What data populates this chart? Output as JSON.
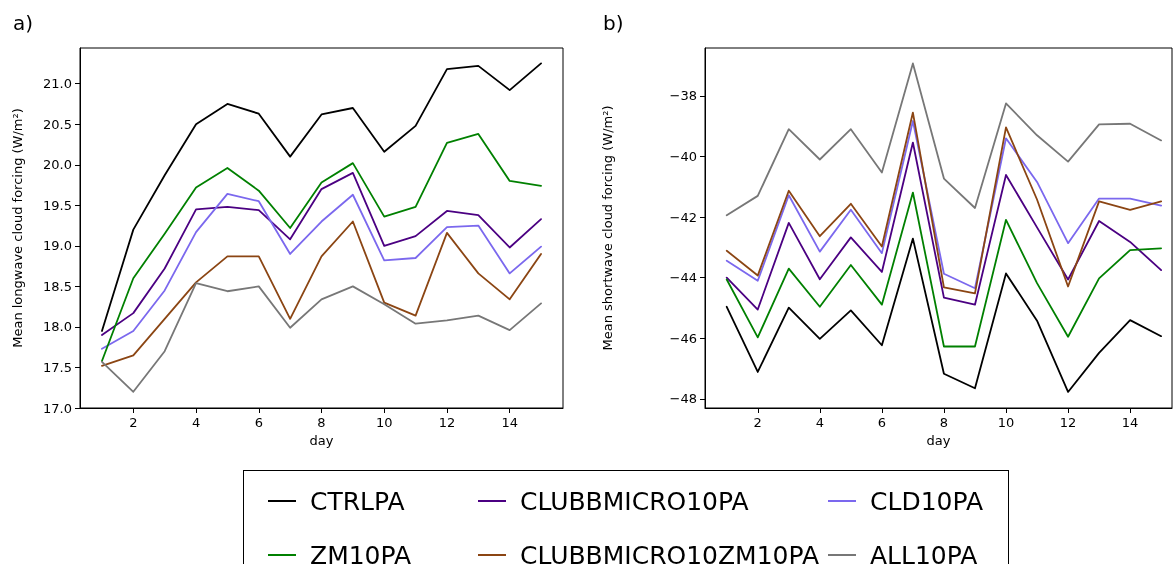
{
  "chart_data": [
    {
      "type": "line",
      "title": "a)",
      "xlabel": "day",
      "ylabel": "Mean longwave cloud forcing (W/m²)",
      "x": [
        1,
        2,
        3,
        4,
        5,
        6,
        7,
        8,
        9,
        10,
        11,
        12,
        13,
        14,
        15
      ],
      "xlim": [
        0.3,
        15.7
      ],
      "xticks": [
        2,
        4,
        6,
        8,
        10,
        12,
        14
      ],
      "ylim": [
        17.0,
        21.44
      ],
      "yticks": [
        {
          "value": 17,
          "label": "17.0"
        },
        {
          "value": 17.5,
          "label": "17.5"
        },
        {
          "value": 18,
          "label": "18.0"
        },
        {
          "value": 18.5,
          "label": "18.5"
        },
        {
          "value": 19,
          "label": "19.0"
        },
        {
          "value": 19.5,
          "label": "19.5"
        },
        {
          "value": 20,
          "label": "20.0"
        },
        {
          "value": 20.5,
          "label": "20.5"
        },
        {
          "value": 21,
          "label": "21.0"
        }
      ],
      "grid": false,
      "marker": "none",
      "line_style": "solid",
      "legend": "bottom",
      "series": [
        {
          "name": "CTRLPA",
          "color": "#000000",
          "values": [
            17.95,
            19.2,
            19.87,
            20.5,
            20.75,
            20.63,
            20.1,
            20.62,
            20.7,
            20.16,
            20.48,
            21.18,
            21.22,
            20.92,
            21.25
          ]
        },
        {
          "name": "CLUBBMICRO10PA",
          "color": "#4b0082",
          "values": [
            17.9,
            18.17,
            18.72,
            19.45,
            19.48,
            19.44,
            19.08,
            19.7,
            19.9,
            19.0,
            19.12,
            19.43,
            19.38,
            18.98,
            19.33
          ]
        },
        {
          "name": "CLD10PA",
          "color": "#7b68ee",
          "values": [
            17.73,
            17.95,
            18.45,
            19.17,
            19.64,
            19.55,
            18.9,
            19.3,
            19.63,
            18.82,
            18.85,
            19.23,
            19.25,
            18.66,
            18.99
          ]
        },
        {
          "name": "ZM10PA",
          "color": "#008000",
          "values": [
            17.58,
            18.6,
            19.15,
            19.72,
            19.96,
            19.68,
            19.22,
            19.78,
            20.02,
            19.36,
            19.48,
            20.27,
            20.38,
            19.8,
            19.74
          ]
        },
        {
          "name": "CLUBBMICRO10ZM10PA",
          "color": "#8b4513",
          "values": [
            17.52,
            17.65,
            18.1,
            18.55,
            18.87,
            18.87,
            18.1,
            18.87,
            19.3,
            18.3,
            18.14,
            19.16,
            18.66,
            18.34,
            18.9
          ]
        },
        {
          "name": "ALL10PA",
          "color": "#777777",
          "values": [
            17.57,
            17.2,
            17.7,
            18.54,
            18.44,
            18.5,
            17.99,
            18.34,
            18.5,
            18.28,
            18.04,
            18.08,
            18.14,
            17.96,
            18.29
          ]
        }
      ]
    },
    {
      "type": "line",
      "title": "b)",
      "xlabel": "day",
      "ylabel": "Mean shortwave cloud forcing (W/m²)",
      "x": [
        1,
        2,
        3,
        4,
        5,
        6,
        7,
        8,
        9,
        10,
        11,
        12,
        13,
        14,
        15
      ],
      "xlim": [
        0.3,
        15.35
      ],
      "xticks": [
        2,
        4,
        6,
        8,
        10,
        12,
        14
      ],
      "ylim": [
        -48.3,
        -36.42
      ],
      "yticks": [
        {
          "value": -48,
          "label": "−48"
        },
        {
          "value": -46,
          "label": "−46"
        },
        {
          "value": -44,
          "label": "−44"
        },
        {
          "value": -42,
          "label": "−42"
        },
        {
          "value": -40,
          "label": "−40"
        },
        {
          "value": -38,
          "label": "−38"
        }
      ],
      "grid": false,
      "marker": "none",
      "line_style": "solid",
      "series": [
        {
          "color": "#000000",
          "values": [
            -44.96,
            -47.11,
            -44.99,
            -46.02,
            -45.08,
            -46.23,
            -42.71,
            -47.17,
            -47.65,
            -43.86,
            -45.42,
            -47.77,
            -46.48,
            -45.4,
            -45.93
          ]
        },
        {
          "color": "#4b0082",
          "values": [
            -44.0,
            -45.05,
            -42.19,
            -44.05,
            -42.67,
            -43.81,
            -39.54,
            -44.66,
            -44.89,
            -40.61,
            -42.34,
            -44.06,
            -42.13,
            -42.82,
            -43.75
          ]
        },
        {
          "color": "#7b68ee",
          "values": [
            -43.44,
            -44.1,
            -41.28,
            -43.14,
            -41.76,
            -43.19,
            -38.83,
            -43.87,
            -44.35,
            -39.4,
            -40.84,
            -42.86,
            -41.39,
            -41.39,
            -41.62
          ]
        },
        {
          "color": "#008000",
          "values": [
            -44.06,
            -45.97,
            -43.7,
            -44.96,
            -43.58,
            -44.89,
            -41.19,
            -46.27,
            -46.27,
            -42.09,
            -44.18,
            -45.95,
            -44.02,
            -43.09,
            -43.03
          ]
        },
        {
          "color": "#8b4513",
          "values": [
            -43.11,
            -43.93,
            -41.13,
            -42.63,
            -41.56,
            -42.97,
            -38.55,
            -44.32,
            -44.52,
            -39.04,
            -41.42,
            -44.29,
            -41.48,
            -41.76,
            -41.48
          ]
        },
        {
          "color": "#777777",
          "values": [
            -41.94,
            -41.3,
            -39.1,
            -40.1,
            -39.1,
            -40.53,
            -36.93,
            -40.73,
            -41.7,
            -38.25,
            -39.3,
            -40.17,
            -38.94,
            -38.92,
            -39.47
          ]
        }
      ]
    }
  ]
}
